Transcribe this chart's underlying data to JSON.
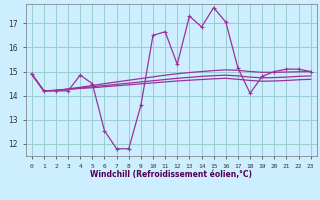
{
  "xlabel": "Windchill (Refroidissement éolien,°C)",
  "bg_color": "#cceeff",
  "grid_color": "#99cccc",
  "line_color": "#993399",
  "hours": [
    0,
    1,
    2,
    3,
    4,
    5,
    6,
    7,
    8,
    9,
    10,
    11,
    12,
    13,
    14,
    15,
    16,
    17,
    18,
    19,
    20,
    21,
    22,
    23
  ],
  "curve_main": [
    14.9,
    14.2,
    14.2,
    14.2,
    14.85,
    14.5,
    12.55,
    11.8,
    11.8,
    13.6,
    16.5,
    16.65,
    15.3,
    17.3,
    16.85,
    17.65,
    17.05,
    15.15,
    14.1,
    14.8,
    15.0,
    15.1,
    15.1,
    15.0
  ],
  "curve_smooth1": [
    14.9,
    14.2,
    14.22,
    14.28,
    14.35,
    14.42,
    14.5,
    14.57,
    14.64,
    14.71,
    14.78,
    14.85,
    14.91,
    14.96,
    15.0,
    15.04,
    15.07,
    15.05,
    15.0,
    14.97,
    14.97,
    14.98,
    14.99,
    15.0
  ],
  "curve_smooth2": [
    14.9,
    14.2,
    14.22,
    14.27,
    14.32,
    14.37,
    14.42,
    14.47,
    14.52,
    14.57,
    14.62,
    14.67,
    14.72,
    14.76,
    14.8,
    14.83,
    14.85,
    14.82,
    14.77,
    14.74,
    14.75,
    14.77,
    14.8,
    14.82
  ],
  "curve_smooth3": [
    14.9,
    14.2,
    14.22,
    14.26,
    14.3,
    14.33,
    14.37,
    14.41,
    14.45,
    14.49,
    14.53,
    14.57,
    14.61,
    14.64,
    14.67,
    14.7,
    14.72,
    14.68,
    14.63,
    14.6,
    14.61,
    14.63,
    14.66,
    14.68
  ],
  "ylim": [
    11.5,
    17.8
  ],
  "yticks": [
    12,
    13,
    14,
    15,
    16,
    17
  ],
  "xticks": [
    0,
    1,
    2,
    3,
    4,
    5,
    6,
    7,
    8,
    9,
    10,
    11,
    12,
    13,
    14,
    15,
    16,
    17,
    18,
    19,
    20,
    21,
    22,
    23
  ]
}
